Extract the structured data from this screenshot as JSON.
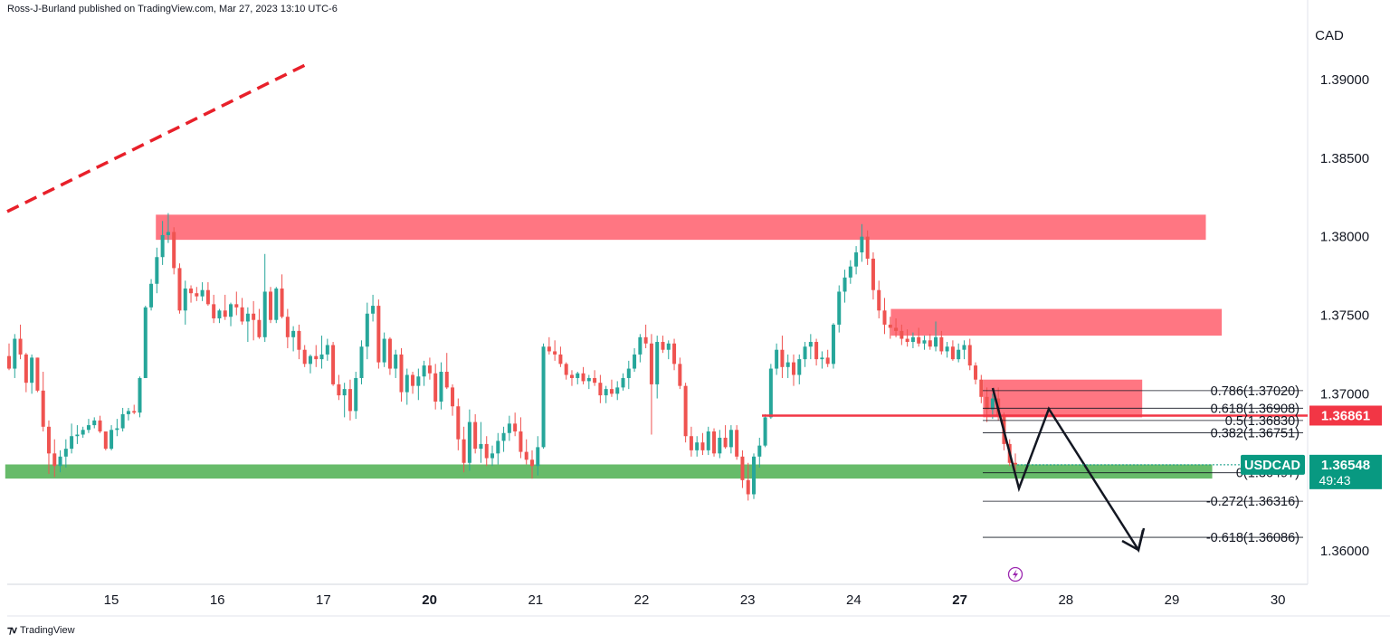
{
  "header": {
    "publisher": "Ross-J-Burland published on TradingView.com, Mar 27, 2023 13:10 UTC-6"
  },
  "footer": {
    "brand": "TradingView",
    "logo_icon": "tradingview-logo-icon"
  },
  "colors": {
    "up": "#26a69a",
    "down": "#ef5350",
    "zone_red": "#ff6f7b",
    "zone_green": "#4caf50",
    "resistance_line": "#f23645",
    "trendline": "#e8202a",
    "fib_line": "#131722",
    "projection": "#131722",
    "price_tag_bg": "#089981",
    "level_tag_bg": "#f23645",
    "axis_text": "#131722",
    "grid": "#e0e3eb"
  },
  "chart_data": {
    "type": "candlestick",
    "symbol": "USDCAD",
    "currency_label": "CAD",
    "x_tick_labels": [
      "15",
      "16",
      "17",
      "20",
      "21",
      "22",
      "23",
      "24",
      "27",
      "28",
      "29",
      "30"
    ],
    "x_tick_bold": [
      "20",
      "27"
    ],
    "y_ticks": [
      "1.39000",
      "1.38500",
      "1.38000",
      "1.37500",
      "1.37000",
      "1.36000"
    ],
    "ylim": [
      1.3585,
      1.3915
    ],
    "last_price": {
      "label": "USDCAD",
      "value": "1.36548",
      "countdown": "49:43"
    },
    "key_level": {
      "value": "1.36861"
    },
    "fibonacci": [
      {
        "ratio": "0.786",
        "price": "1.37020",
        "label": "0.786(1.37020)"
      },
      {
        "ratio": "0.618",
        "price": "1.36908",
        "label": "0.618(1.36908)"
      },
      {
        "ratio": "0.5",
        "price": "1.36830",
        "label": "0.5(1.36830)"
      },
      {
        "ratio": "0.382",
        "price": "1.36751",
        "label": "0.382(1.36751)"
      },
      {
        "ratio": "0",
        "price": "1.36497",
        "label": "0(1.36497)"
      },
      {
        "ratio": "-0.272",
        "price": "1.36316",
        "label": "-0.272(1.36316)"
      },
      {
        "ratio": "-0.618",
        "price": "1.36086",
        "label": "-0.618(1.36086)"
      }
    ],
    "zones": [
      {
        "name": "resistance-zone-top",
        "color": "red",
        "from_day": 15.42,
        "to_day": 29.32,
        "low": 1.3798,
        "high": 1.3814
      },
      {
        "name": "resistance-zone-mid",
        "color": "red",
        "from_day": 24.35,
        "to_day": 29.47,
        "low": 1.3737,
        "high": 1.3754
      },
      {
        "name": "resistance-zone-low",
        "color": "red",
        "from_day": 27.22,
        "to_day": 28.72,
        "low": 1.3685,
        "high": 1.3709
      },
      {
        "name": "support-zone",
        "color": "green",
        "from_day": 14.0,
        "to_day": 29.38,
        "low": 1.3646,
        "high": 1.3655
      }
    ],
    "key_level_line": {
      "from_day": 23.18,
      "price": 1.36861
    },
    "trendline": {
      "from": [
        14.0,
        1.3816
      ],
      "to": [
        18.85,
        1.391
      ]
    },
    "projection_path": [
      [
        27.35,
        1.3704
      ],
      [
        27.52,
        1.3641
      ],
      [
        27.8,
        1.369
      ],
      [
        28.72,
        1.36
      ],
      [
        28.8,
        1.3614
      ]
    ],
    "projection_arrow_tip": [
      28.72,
      1.36
    ],
    "candles": {
      "start_day": 14.02,
      "day_step": 0.0417,
      "ohlc": [
        [
          1.3724,
          1.3732,
          1.3715,
          1.3716
        ],
        [
          1.3716,
          1.3738,
          1.371,
          1.3735
        ],
        [
          1.3735,
          1.3744,
          1.3722,
          1.3725
        ],
        [
          1.3725,
          1.3726,
          1.3701,
          1.3707
        ],
        [
          1.3707,
          1.3725,
          1.37,
          1.3723
        ],
        [
          1.3723,
          1.3723,
          1.3701,
          1.3702
        ],
        [
          1.3702,
          1.3714,
          1.3676,
          1.3679
        ],
        [
          1.3679,
          1.3683,
          1.3649,
          1.3662
        ],
        [
          1.3662,
          1.3671,
          1.3647,
          1.3654
        ],
        [
          1.3654,
          1.3664,
          1.365,
          1.366
        ],
        [
          1.366,
          1.3671,
          1.3653,
          1.3665
        ],
        [
          1.3665,
          1.3681,
          1.3662,
          1.3673
        ],
        [
          1.3673,
          1.368,
          1.3668,
          1.3674
        ],
        [
          1.3674,
          1.3679,
          1.3672,
          1.3677
        ],
        [
          1.3677,
          1.3684,
          1.3675,
          1.368
        ],
        [
          1.368,
          1.3685,
          1.3678,
          1.3683
        ],
        [
          1.3683,
          1.3686,
          1.3675,
          1.3676
        ],
        [
          1.3676,
          1.3676,
          1.3664,
          1.3665
        ],
        [
          1.3665,
          1.368,
          1.3664,
          1.3677
        ],
        [
          1.3677,
          1.3684,
          1.3673,
          1.3678
        ],
        [
          1.3678,
          1.3691,
          1.3676,
          1.3687
        ],
        [
          1.3687,
          1.3691,
          1.3683,
          1.3689
        ],
        [
          1.3689,
          1.3693,
          1.3687,
          1.3688
        ],
        [
          1.3688,
          1.3711,
          1.3685,
          1.371
        ],
        [
          1.371,
          1.3756,
          1.371,
          1.3755
        ],
        [
          1.3755,
          1.3773,
          1.3753,
          1.377
        ],
        [
          1.377,
          1.3793,
          1.3764,
          1.3787
        ],
        [
          1.3787,
          1.381,
          1.3782,
          1.3801
        ],
        [
          1.3801,
          1.3815,
          1.3796,
          1.3803
        ],
        [
          1.3803,
          1.3806,
          1.3776,
          1.378
        ],
        [
          1.378,
          1.3783,
          1.3751,
          1.3753
        ],
        [
          1.3753,
          1.3772,
          1.3744,
          1.3767
        ],
        [
          1.3767,
          1.3769,
          1.3758,
          1.3764
        ],
        [
          1.3764,
          1.3768,
          1.3759,
          1.3762
        ],
        [
          1.3762,
          1.3771,
          1.3759,
          1.3766
        ],
        [
          1.3766,
          1.3771,
          1.3756,
          1.3757
        ],
        [
          1.3757,
          1.3763,
          1.3745,
          1.3748
        ],
        [
          1.3748,
          1.3754,
          1.3745,
          1.3753
        ],
        [
          1.3753,
          1.3763,
          1.3747,
          1.3749
        ],
        [
          1.3749,
          1.3758,
          1.3743,
          1.3757
        ],
        [
          1.3757,
          1.3765,
          1.375,
          1.3755
        ],
        [
          1.3755,
          1.3761,
          1.3744,
          1.3746
        ],
        [
          1.3746,
          1.3755,
          1.3733,
          1.3751
        ],
        [
          1.3751,
          1.3759,
          1.3734,
          1.3747
        ],
        [
          1.3747,
          1.3754,
          1.3735,
          1.3736
        ],
        [
          1.3736,
          1.3789,
          1.3733,
          1.3765
        ],
        [
          1.3765,
          1.3768,
          1.3745,
          1.3747
        ],
        [
          1.3747,
          1.3768,
          1.3745,
          1.3767
        ],
        [
          1.3767,
          1.3776,
          1.3748,
          1.3749
        ],
        [
          1.3749,
          1.3754,
          1.3729,
          1.3736
        ],
        [
          1.3736,
          1.3743,
          1.3727,
          1.374
        ],
        [
          1.374,
          1.3744,
          1.3722,
          1.3728
        ],
        [
          1.3728,
          1.3731,
          1.3717,
          1.3719
        ],
        [
          1.3719,
          1.3725,
          1.3713,
          1.3724
        ],
        [
          1.3724,
          1.3731,
          1.3717,
          1.3722
        ],
        [
          1.3722,
          1.3737,
          1.3716,
          1.3725
        ],
        [
          1.3725,
          1.3735,
          1.3721,
          1.3731
        ],
        [
          1.3731,
          1.3733,
          1.3705,
          1.3706
        ],
        [
          1.3706,
          1.3712,
          1.3696,
          1.3699
        ],
        [
          1.3699,
          1.3707,
          1.3685,
          1.3703
        ],
        [
          1.3703,
          1.3709,
          1.3683,
          1.3689
        ],
        [
          1.3689,
          1.3714,
          1.3684,
          1.371
        ],
        [
          1.371,
          1.3734,
          1.3706,
          1.373
        ],
        [
          1.373,
          1.3758,
          1.3722,
          1.3751
        ],
        [
          1.3751,
          1.3763,
          1.3746,
          1.3756
        ],
        [
          1.3756,
          1.376,
          1.3716,
          1.372
        ],
        [
          1.372,
          1.3739,
          1.3717,
          1.3735
        ],
        [
          1.3735,
          1.3736,
          1.3712,
          1.3716
        ],
        [
          1.3716,
          1.3728,
          1.371,
          1.3725
        ],
        [
          1.3725,
          1.3729,
          1.3695,
          1.3701
        ],
        [
          1.3701,
          1.3716,
          1.3693,
          1.3712
        ],
        [
          1.3712,
          1.3714,
          1.37,
          1.3705
        ],
        [
          1.3705,
          1.3716,
          1.3696,
          1.3711
        ],
        [
          1.3711,
          1.3721,
          1.3705,
          1.3718
        ],
        [
          1.3718,
          1.3723,
          1.3709,
          1.3713
        ],
        [
          1.3713,
          1.3719,
          1.369,
          1.3695
        ],
        [
          1.3695,
          1.372,
          1.369,
          1.3714
        ],
        [
          1.3714,
          1.3726,
          1.3703,
          1.3704
        ],
        [
          1.3704,
          1.3706,
          1.3686,
          1.3692
        ],
        [
          1.3692,
          1.3697,
          1.3664,
          1.3671
        ],
        [
          1.3671,
          1.3679,
          1.365,
          1.3656
        ],
        [
          1.3656,
          1.369,
          1.3651,
          1.3682
        ],
        [
          1.3682,
          1.3687,
          1.3662,
          1.3665
        ],
        [
          1.3665,
          1.3682,
          1.3656,
          1.3668
        ],
        [
          1.3668,
          1.3673,
          1.3654,
          1.3659
        ],
        [
          1.3659,
          1.3667,
          1.3654,
          1.3662
        ],
        [
          1.3662,
          1.3675,
          1.3655,
          1.367
        ],
        [
          1.367,
          1.3679,
          1.3663,
          1.3675
        ],
        [
          1.3675,
          1.3686,
          1.367,
          1.3681
        ],
        [
          1.3681,
          1.3688,
          1.3673,
          1.3676
        ],
        [
          1.3676,
          1.3685,
          1.3659,
          1.3663
        ],
        [
          1.3663,
          1.3671,
          1.3655,
          1.3658
        ],
        [
          1.3658,
          1.3664,
          1.3646,
          1.3654
        ],
        [
          1.3654,
          1.3673,
          1.3648,
          1.3666
        ],
        [
          1.3666,
          1.3732,
          1.3665,
          1.373
        ],
        [
          1.373,
          1.3736,
          1.3725,
          1.3727
        ],
        [
          1.3727,
          1.3734,
          1.3721,
          1.3725
        ],
        [
          1.3725,
          1.373,
          1.3717,
          1.3719
        ],
        [
          1.3719,
          1.372,
          1.3709,
          1.3712
        ],
        [
          1.3712,
          1.3715,
          1.3705,
          1.371
        ],
        [
          1.371,
          1.3714,
          1.3706,
          1.3713
        ],
        [
          1.3713,
          1.3717,
          1.3706,
          1.3708
        ],
        [
          1.3708,
          1.3712,
          1.3703,
          1.371
        ],
        [
          1.371,
          1.3715,
          1.3705,
          1.3707
        ],
        [
          1.3707,
          1.3712,
          1.3694,
          1.3699
        ],
        [
          1.3699,
          1.3705,
          1.3694,
          1.3703
        ],
        [
          1.3703,
          1.3709,
          1.3698,
          1.37
        ],
        [
          1.37,
          1.3708,
          1.3696,
          1.3704
        ],
        [
          1.3704,
          1.3713,
          1.3702,
          1.371
        ],
        [
          1.371,
          1.3721,
          1.3703,
          1.3716
        ],
        [
          1.3716,
          1.3729,
          1.3714,
          1.3725
        ],
        [
          1.3725,
          1.3738,
          1.372,
          1.3736
        ],
        [
          1.3736,
          1.3744,
          1.3729,
          1.3732
        ],
        [
          1.3732,
          1.3738,
          1.3674,
          1.3706
        ],
        [
          1.3706,
          1.3737,
          1.3697,
          1.3733
        ],
        [
          1.3733,
          1.3737,
          1.3726,
          1.3728
        ],
        [
          1.3728,
          1.3734,
          1.3722,
          1.3732
        ],
        [
          1.3732,
          1.3735,
          1.3715,
          1.3719
        ],
        [
          1.3719,
          1.3723,
          1.3703,
          1.3705
        ],
        [
          1.3705,
          1.3707,
          1.3669,
          1.3673
        ],
        [
          1.3673,
          1.3679,
          1.366,
          1.3664
        ],
        [
          1.3664,
          1.3673,
          1.366,
          1.3669
        ],
        [
          1.3669,
          1.3675,
          1.3661,
          1.3664
        ],
        [
          1.3664,
          1.3679,
          1.3661,
          1.3676
        ],
        [
          1.3676,
          1.3678,
          1.366,
          1.3662
        ],
        [
          1.3662,
          1.3677,
          1.3659,
          1.3672
        ],
        [
          1.3672,
          1.368,
          1.3665,
          1.3666
        ],
        [
          1.3666,
          1.368,
          1.3662,
          1.3677
        ],
        [
          1.3677,
          1.368,
          1.3658,
          1.366
        ],
        [
          1.366,
          1.3664,
          1.364,
          1.3645
        ],
        [
          1.3645,
          1.3656,
          1.3632,
          1.3636
        ],
        [
          1.3636,
          1.3662,
          1.3633,
          1.366
        ],
        [
          1.366,
          1.3672,
          1.3653,
          1.3667
        ],
        [
          1.3667,
          1.3687,
          1.3666,
          1.3685
        ],
        [
          1.3685,
          1.3719,
          1.3684,
          1.3716
        ],
        [
          1.3716,
          1.3732,
          1.3712,
          1.3728
        ],
        [
          1.3728,
          1.3737,
          1.371,
          1.3717
        ],
        [
          1.3717,
          1.3725,
          1.371,
          1.372
        ],
        [
          1.372,
          1.3725,
          1.3705,
          1.3712
        ],
        [
          1.3712,
          1.3725,
          1.3706,
          1.3722
        ],
        [
          1.3722,
          1.3733,
          1.3717,
          1.373
        ],
        [
          1.373,
          1.3738,
          1.3722,
          1.3733
        ],
        [
          1.3733,
          1.3735,
          1.3718,
          1.3722
        ],
        [
          1.3722,
          1.3727,
          1.3716,
          1.3723
        ],
        [
          1.3723,
          1.3728,
          1.3717,
          1.3719
        ],
        [
          1.3719,
          1.3745,
          1.3716,
          1.3744
        ],
        [
          1.3744,
          1.3769,
          1.3739,
          1.3765
        ],
        [
          1.3765,
          1.3779,
          1.3758,
          1.3774
        ],
        [
          1.3774,
          1.3785,
          1.377,
          1.3781
        ],
        [
          1.3781,
          1.3794,
          1.3776,
          1.379
        ],
        [
          1.379,
          1.3808,
          1.3784,
          1.38
        ],
        [
          1.38,
          1.3804,
          1.3782,
          1.3786
        ],
        [
          1.3786,
          1.379,
          1.376,
          1.3766
        ],
        [
          1.3766,
          1.3772,
          1.3748,
          1.3753
        ],
        [
          1.3753,
          1.3761,
          1.3738,
          1.3744
        ],
        [
          1.3744,
          1.3749,
          1.3735,
          1.3742
        ],
        [
          1.3742,
          1.3748,
          1.3736,
          1.374
        ],
        [
          1.374,
          1.3744,
          1.3731,
          1.3735
        ],
        [
          1.3735,
          1.3741,
          1.373,
          1.3733
        ],
        [
          1.3733,
          1.3739,
          1.3729,
          1.3736
        ],
        [
          1.3736,
          1.3742,
          1.373,
          1.3732
        ],
        [
          1.3732,
          1.3737,
          1.3728,
          1.3734
        ],
        [
          1.3734,
          1.3738,
          1.3728,
          1.373
        ],
        [
          1.373,
          1.3746,
          1.3727,
          1.3736
        ],
        [
          1.3736,
          1.374,
          1.3725,
          1.3727
        ],
        [
          1.3727,
          1.3733,
          1.3723,
          1.373
        ],
        [
          1.373,
          1.3734,
          1.3721,
          1.3722
        ],
        [
          1.3722,
          1.3732,
          1.372,
          1.3728
        ],
        [
          1.3728,
          1.3734,
          1.3722,
          1.3731
        ],
        [
          1.3731,
          1.3735,
          1.3715,
          1.3718
        ],
        [
          1.3718,
          1.372,
          1.3706,
          1.3709
        ],
        [
          1.3709,
          1.3712,
          1.3694,
          1.3698
        ],
        [
          1.3698,
          1.3704,
          1.3682,
          1.369
        ],
        [
          1.369,
          1.37,
          1.3684,
          1.3697
        ],
        [
          1.3697,
          1.3704,
          1.3683,
          1.3686
        ],
        [
          1.3686,
          1.3688,
          1.3664,
          1.3668
        ],
        [
          1.3668,
          1.3671,
          1.3654,
          1.3656
        ],
        [
          1.3656,
          1.3662,
          1.365,
          1.3655
        ]
      ]
    }
  }
}
